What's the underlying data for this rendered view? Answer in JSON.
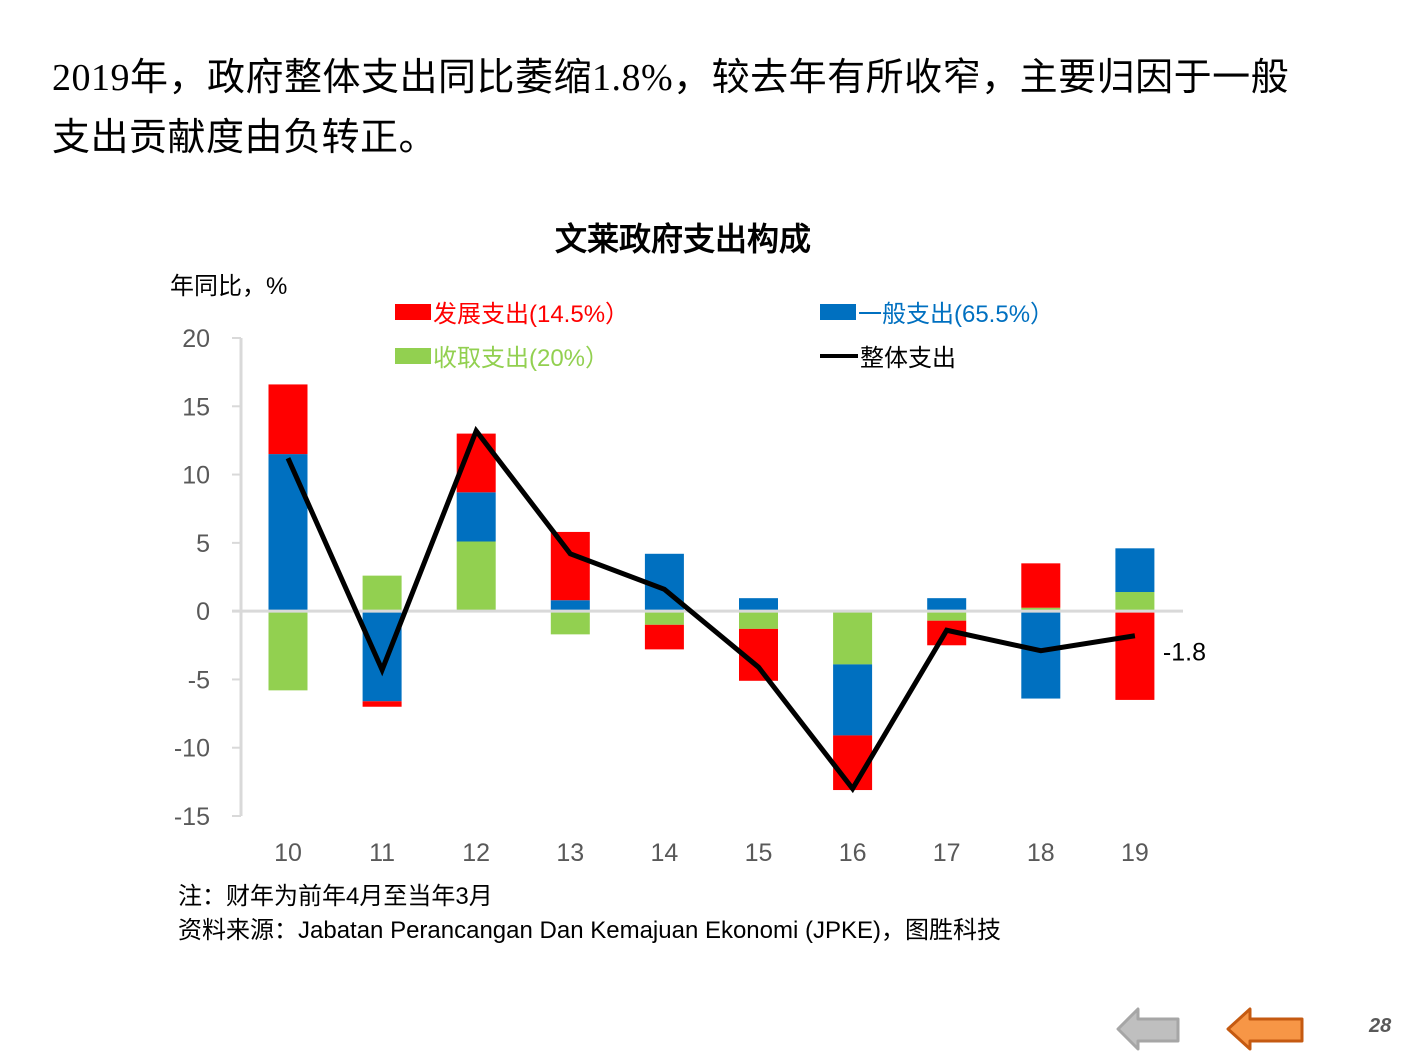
{
  "headline": {
    "line1": "2019年，政府整体支出同比萎缩1.8%，较去年有所收窄，主要归因于一般",
    "line2": "支出贡献度由负转正。"
  },
  "chart_data": {
    "type": "bar",
    "subtype": "stacked-bar-with-line",
    "title": "文莱政府支出构成",
    "xlabel": "",
    "ylabel": "年同比，%",
    "categories": [
      "10",
      "11",
      "12",
      "13",
      "14",
      "15",
      "16",
      "17",
      "18",
      "19"
    ],
    "ylim": [
      -15,
      20
    ],
    "yticks": [
      20,
      15,
      10,
      5,
      0,
      -5,
      -10,
      -15
    ],
    "grid": false,
    "legend_position": "top",
    "series": [
      {
        "name": "发展支出(14.5%）",
        "kind": "bar",
        "color": "#FF0000",
        "values": [
          5.1,
          -0.4,
          4.3,
          5.0,
          -1.8,
          -3.8,
          -4.0,
          -1.8,
          3.25,
          -6.5
        ]
      },
      {
        "name": "一般支出(65.5%）",
        "kind": "bar",
        "color": "#0070C0",
        "values": [
          11.5,
          -6.6,
          3.6,
          0.8,
          4.2,
          0.95,
          -5.2,
          0.95,
          -6.4,
          3.2
        ]
      },
      {
        "name": "收取支出(20%）",
        "kind": "bar",
        "color": "#92D050",
        "values": [
          -5.8,
          2.6,
          5.1,
          -1.7,
          -1.0,
          -1.3,
          -3.9,
          -0.7,
          0.25,
          1.4
        ]
      },
      {
        "name": "整体支出",
        "kind": "line",
        "color": "#000000",
        "values": [
          11.2,
          -4.3,
          13.2,
          4.2,
          1.6,
          -4.1,
          -13.0,
          -1.4,
          -2.9,
          -1.8
        ]
      }
    ],
    "annotations": [
      {
        "category": "19",
        "series": "整体支出",
        "text": "-1.8"
      }
    ]
  },
  "legend": [
    {
      "label": "发展支出(14.5%）",
      "color": "#FF0000",
      "type": "swatch"
    },
    {
      "label": "一般支出(65.5%）",
      "color": "#0070C0",
      "type": "swatch"
    },
    {
      "label": "收取支出(20%）",
      "color": "#92D050",
      "type": "swatch"
    },
    {
      "label": "整体支出",
      "color": "#000000",
      "type": "line"
    }
  ],
  "notes": {
    "note": "注：财年为前年4月至当年3月",
    "source": "资料来源：Jabatan Perancangan Dan Kemajuan Ekonomi (JPKE)，图胜科技"
  },
  "footer": {
    "prev_icon": "arrow-left-gray-icon",
    "back_icon": "arrow-left-orange-icon",
    "page_number": "28"
  }
}
